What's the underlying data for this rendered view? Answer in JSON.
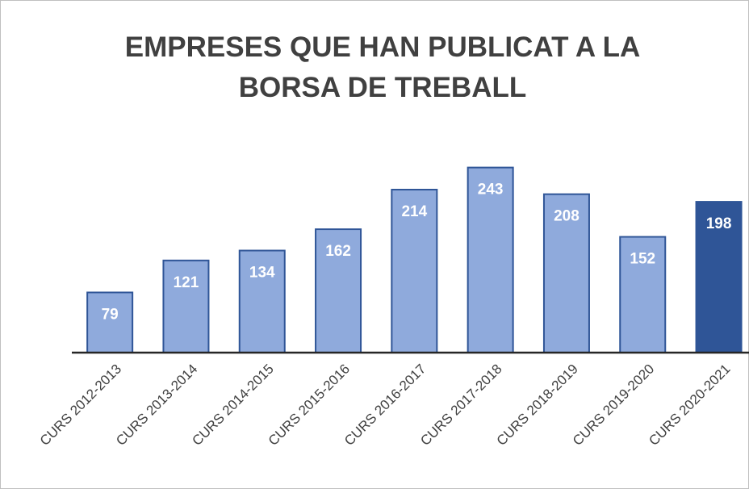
{
  "chart_data": {
    "type": "bar",
    "title": "EMPRESES QUE HAN PUBLICAT A LA BORSA DE TREBALL",
    "categories": [
      "CURS 2012-2013",
      "CURS 2013-2014",
      "CURS 2014-2015",
      "CURS 2015-2016",
      "CURS 2016-2017",
      "CURS 2017-2018",
      "CURS 2018-2019",
      "CURS 2019-2020",
      "CURS 2020-2021"
    ],
    "values": [
      79,
      121,
      134,
      162,
      214,
      243,
      208,
      152,
      198
    ],
    "colors": [
      "#8faadc",
      "#8faadc",
      "#8faadc",
      "#8faadc",
      "#8faadc",
      "#8faadc",
      "#8faadc",
      "#8faadc",
      "#2f5597"
    ],
    "ylim": [
      0,
      250
    ]
  }
}
